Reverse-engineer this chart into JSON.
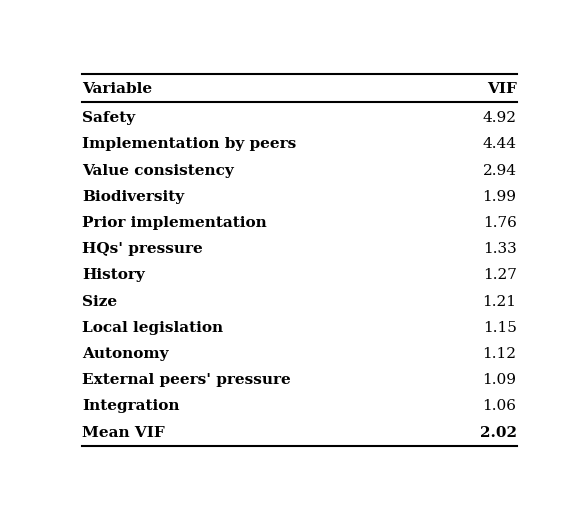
{
  "variables": [
    "Safety",
    "Implementation by peers",
    "Value consistency",
    "Biodiversity",
    "Prior implementation",
    "HQs' pressure",
    "History",
    "Size",
    "Local legislation",
    "Autonomy",
    "External peers' pressure",
    "Integration",
    "Mean VIF"
  ],
  "vif_values": [
    "4.92",
    "4.44",
    "2.94",
    "1.99",
    "1.76",
    "1.33",
    "1.27",
    "1.21",
    "1.15",
    "1.12",
    "1.09",
    "1.06",
    "2.02"
  ],
  "header_variable": "Variable",
  "header_vif": "VIF",
  "bg_color": "#ffffff",
  "text_color": "#000000",
  "header_fontsize": 11,
  "body_fontsize": 11,
  "figsize": [
    5.84,
    5.14
  ],
  "dpi": 100
}
